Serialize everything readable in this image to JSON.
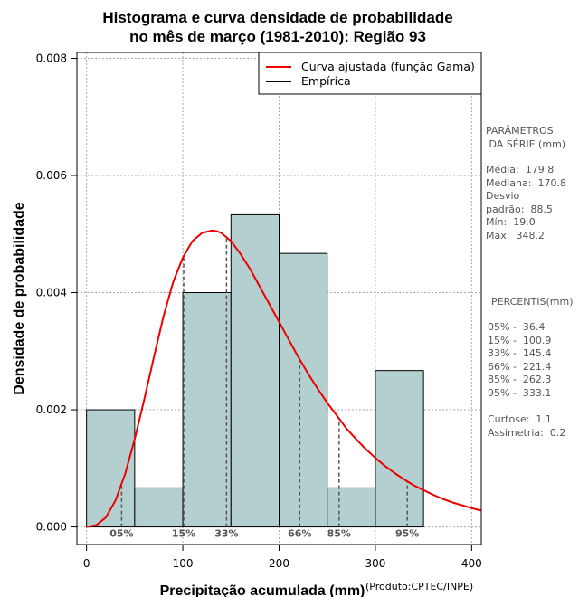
{
  "chart_data": {
    "type": "histogram",
    "title_line1": "Histograma e curva densidade de probabilidade",
    "title_line2": "no mês de março (1981-2010): Região 93",
    "xlabel": "Precipitação acumulada (mm)",
    "ylabel": "Densidade de probabilidade",
    "credit": "(Produto:CPTEC/INPE)",
    "xlim": [
      -10,
      410
    ],
    "ylim": [
      -0.0003,
      0.0081
    ],
    "x_ticks": [
      0,
      100,
      200,
      300,
      400
    ],
    "x_tick_labels": [
      "0",
      "100",
      "200",
      "300",
      "400"
    ],
    "y_ticks": [
      0.0,
      0.002,
      0.004,
      0.006,
      0.008
    ],
    "y_tick_labels": [
      "0.000",
      "0.002",
      "0.004",
      "0.006",
      "0.008"
    ],
    "grid": true,
    "bin_edges": [
      0,
      50,
      100,
      150,
      200,
      250,
      300,
      350
    ],
    "densities": [
      0.002,
      0.000667,
      0.004,
      0.00533,
      0.00467,
      0.000667,
      0.00267
    ],
    "bar_color": "#b4cfcf",
    "curve_color": "#ee0000",
    "fitted_curve": {
      "name": "Curva ajustada (função Gama)",
      "distribution": "gamma",
      "x": [
        0,
        10,
        20,
        30,
        40,
        50,
        60,
        70,
        80,
        90,
        100,
        110,
        120,
        130,
        135,
        140,
        150,
        160,
        170,
        180,
        190,
        200,
        210,
        220,
        230,
        240,
        250,
        260,
        270,
        280,
        290,
        300,
        310,
        320,
        330,
        340,
        350,
        360,
        370,
        380,
        390,
        400,
        410
      ],
      "y": [
        0.0,
        3e-05,
        0.00016,
        0.00045,
        0.0009,
        0.0015,
        0.00218,
        0.0029,
        0.0036,
        0.00418,
        0.0046,
        0.00488,
        0.00502,
        0.00506,
        0.00505,
        0.00502,
        0.00488,
        0.00466,
        0.0044,
        0.0041,
        0.0038,
        0.0035,
        0.0032,
        0.0029,
        0.00262,
        0.00236,
        0.00212,
        0.0019,
        0.00168,
        0.0015,
        0.00133,
        0.00118,
        0.00104,
        0.00092,
        0.00081,
        0.00071,
        0.00063,
        0.00055,
        0.00048,
        0.00042,
        0.00037,
        0.00032,
        0.00028
      ]
    },
    "empirical_name": "Empírica",
    "percentile_markers": [
      {
        "label": "05%",
        "x": 36.4
      },
      {
        "label": "15%",
        "x": 100.9
      },
      {
        "label": "33%",
        "x": 145.4
      },
      {
        "label": "66%",
        "x": 221.4
      },
      {
        "label": "85%",
        "x": 262.3
      },
      {
        "label": "95%",
        "x": 333.1
      }
    ]
  },
  "sidebar": {
    "params_header": "PARÂMETROS\n DA SÉRIE (mm)",
    "params_body": "Média:  179.8\nMediana:  170.8\nDesvio\npadrão:  88.5\nMín:  19.0\nMáx:  348.2",
    "percentis_header": "PERCENTIS(mm)",
    "percentis_body": "05% -  36.4\n15% -  100.9\n33% -  145.4\n66% -  221.4\n85% -  262.3\n95% -  333.1",
    "stats_body": "Curtose:  1.1\nAssimetria:  0.2"
  }
}
